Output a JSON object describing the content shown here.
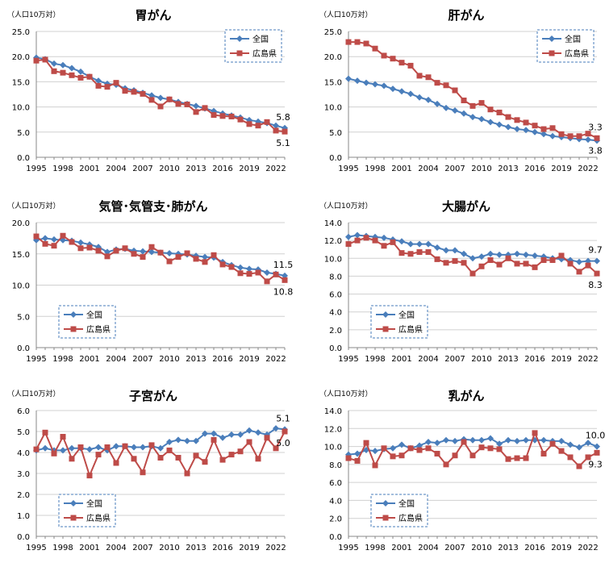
{
  "colors": {
    "national": "#4a7ebb",
    "hiroshima": "#be4b48",
    "grid": "#d0d0d0",
    "legend_border": "#4a7ebb"
  },
  "chart_data": [
    {
      "type": "line",
      "title": "胃がん",
      "unit_label": "（人口10万対）",
      "ylim": [
        0,
        25
      ],
      "yticks": [
        "0.0",
        "5.0",
        "10.0",
        "15.0",
        "20.0",
        "25.0"
      ],
      "xlim": [
        1995,
        2023
      ],
      "xticks": [
        "1995",
        "1998",
        "2001",
        "2004",
        "2007",
        "2010",
        "2013",
        "2016",
        "2019",
        "2022"
      ],
      "legend_position": "top-right",
      "end_labels": [
        "5.8",
        "5.1"
      ],
      "x": [
        1995,
        1996,
        1997,
        1998,
        1999,
        2000,
        2001,
        2002,
        2003,
        2004,
        2005,
        2006,
        2007,
        2008,
        2009,
        2010,
        2011,
        2012,
        2013,
        2014,
        2015,
        2016,
        2017,
        2018,
        2019,
        2020,
        2021,
        2022,
        2023
      ],
      "series": [
        {
          "name": "全国",
          "marker": "diamond",
          "values": [
            19.8,
            19.5,
            18.6,
            18.3,
            17.7,
            17.0,
            16.0,
            15.2,
            14.6,
            14.4,
            13.7,
            13.3,
            12.8,
            12.3,
            11.8,
            11.5,
            11.0,
            10.6,
            10.2,
            9.7,
            9.2,
            8.7,
            8.3,
            7.9,
            7.4,
            7.1,
            6.8,
            6.3,
            5.8
          ]
        },
        {
          "name": "広島県",
          "marker": "square",
          "values": [
            19.2,
            19.4,
            17.1,
            16.8,
            16.3,
            15.8,
            16.0,
            14.2,
            14.0,
            14.8,
            13.2,
            13.0,
            12.6,
            11.4,
            10.1,
            11.5,
            10.6,
            10.5,
            9.0,
            9.8,
            8.4,
            8.2,
            8.1,
            7.5,
            6.6,
            6.3,
            7.0,
            5.3,
            5.1
          ]
        }
      ]
    },
    {
      "type": "line",
      "title": "肝がん",
      "unit_label": "（人口10万対）",
      "ylim": [
        0,
        25
      ],
      "yticks": [
        "0.0",
        "5.0",
        "10.0",
        "15.0",
        "20.0",
        "25.0"
      ],
      "xlim": [
        1995,
        2023
      ],
      "xticks": [
        "1995",
        "1998",
        "2001",
        "2004",
        "2007",
        "2010",
        "2013",
        "2016",
        "2019",
        "2022"
      ],
      "legend_position": "top-right",
      "end_labels": [
        "3.8",
        "3.3"
      ],
      "x": [
        1995,
        1996,
        1997,
        1998,
        1999,
        2000,
        2001,
        2002,
        2003,
        2004,
        2005,
        2006,
        2007,
        2008,
        2009,
        2010,
        2011,
        2012,
        2013,
        2014,
        2015,
        2016,
        2017,
        2018,
        2019,
        2020,
        2021,
        2022,
        2023
      ],
      "series": [
        {
          "name": "全国",
          "marker": "diamond",
          "values": [
            15.6,
            15.2,
            14.8,
            14.5,
            14.2,
            13.6,
            13.1,
            12.6,
            11.9,
            11.4,
            10.6,
            9.8,
            9.3,
            8.7,
            8.0,
            7.6,
            7.0,
            6.5,
            6.0,
            5.6,
            5.4,
            5.0,
            4.6,
            4.2,
            4.0,
            3.8,
            3.6,
            3.5,
            3.3
          ]
        },
        {
          "name": "広島県",
          "marker": "square",
          "values": [
            22.9,
            22.9,
            22.6,
            21.6,
            20.2,
            19.6,
            18.8,
            18.2,
            16.2,
            15.9,
            14.8,
            14.3,
            13.3,
            11.3,
            10.2,
            10.8,
            9.5,
            8.9,
            8.0,
            7.4,
            6.9,
            6.3,
            5.6,
            5.8,
            4.6,
            4.2,
            4.2,
            4.7,
            3.8
          ]
        }
      ]
    },
    {
      "type": "line",
      "title": "気管･気管支･肺がん",
      "unit_label": "（人口10万対）",
      "ylim": [
        0,
        20
      ],
      "yticks": [
        "0.0",
        "5.0",
        "10.0",
        "15.0",
        "20.0"
      ],
      "xlim": [
        1995,
        2023
      ],
      "xticks": [
        "1995",
        "1998",
        "2001",
        "2004",
        "2007",
        "2010",
        "2013",
        "2016",
        "2019",
        "2022"
      ],
      "legend_position": "bottom-left",
      "end_labels": [
        "11.5",
        "10.8"
      ],
      "x": [
        1995,
        1996,
        1997,
        1998,
        1999,
        2000,
        2001,
        2002,
        2003,
        2004,
        2005,
        2006,
        2007,
        2008,
        2009,
        2010,
        2011,
        2012,
        2013,
        2014,
        2015,
        2016,
        2017,
        2018,
        2019,
        2020,
        2021,
        2022,
        2023
      ],
      "series": [
        {
          "name": "全国",
          "marker": "diamond",
          "values": [
            17.2,
            17.5,
            17.3,
            17.2,
            17.1,
            16.8,
            16.5,
            16.1,
            15.3,
            15.7,
            15.8,
            15.5,
            15.4,
            15.3,
            15.2,
            15.1,
            15.0,
            14.9,
            14.7,
            14.5,
            14.4,
            13.7,
            13.2,
            12.8,
            12.6,
            12.5,
            12.0,
            11.8,
            11.5
          ]
        },
        {
          "name": "広島県",
          "marker": "square",
          "values": [
            17.8,
            16.6,
            16.3,
            17.9,
            16.9,
            15.9,
            16.0,
            15.5,
            14.6,
            15.5,
            15.9,
            15.0,
            14.5,
            16.1,
            15.2,
            13.8,
            14.5,
            15.1,
            14.2,
            13.7,
            14.8,
            13.3,
            12.9,
            11.9,
            11.8,
            12.0,
            10.6,
            11.7,
            10.8
          ]
        }
      ]
    },
    {
      "type": "line",
      "title": "大腸がん",
      "unit_label": "（人口10万対）",
      "ylim": [
        0,
        14
      ],
      "yticks": [
        "0.0",
        "2.0",
        "4.0",
        "6.0",
        "8.0",
        "10.0",
        "12.0",
        "14.0"
      ],
      "xlim": [
        1995,
        2023
      ],
      "xticks": [
        "1995",
        "1998",
        "2001",
        "2004",
        "2007",
        "2010",
        "2013",
        "2016",
        "2019",
        "2022"
      ],
      "legend_position": "bottom-left",
      "end_labels": [
        "9.7",
        "8.3"
      ],
      "x": [
        1995,
        1996,
        1997,
        1998,
        1999,
        2000,
        2001,
        2002,
        2003,
        2004,
        2005,
        2006,
        2007,
        2008,
        2009,
        2010,
        2011,
        2012,
        2013,
        2014,
        2015,
        2016,
        2017,
        2018,
        2019,
        2020,
        2021,
        2022,
        2023
      ],
      "series": [
        {
          "name": "全国",
          "marker": "diamond",
          "values": [
            12.4,
            12.6,
            12.5,
            12.4,
            12.3,
            12.1,
            11.9,
            11.6,
            11.6,
            11.6,
            11.2,
            10.9,
            10.9,
            10.5,
            10.0,
            10.2,
            10.5,
            10.4,
            10.4,
            10.5,
            10.4,
            10.3,
            10.2,
            10.0,
            9.9,
            9.8,
            9.6,
            9.7,
            9.7
          ]
        },
        {
          "name": "広島県",
          "marker": "square",
          "values": [
            11.6,
            12.0,
            12.3,
            12.0,
            11.4,
            11.8,
            10.6,
            10.5,
            10.7,
            10.7,
            9.9,
            9.5,
            9.7,
            9.5,
            8.3,
            9.1,
            9.8,
            9.3,
            10.0,
            9.4,
            9.4,
            9.0,
            9.8,
            9.8,
            10.3,
            9.4,
            8.5,
            9.2,
            8.3
          ]
        }
      ]
    },
    {
      "type": "line",
      "title": "子宮がん",
      "unit_label": "（人口10万対）",
      "ylim": [
        0,
        6
      ],
      "yticks": [
        "0.0",
        "1.0",
        "2.0",
        "3.0",
        "4.0",
        "5.0",
        "6.0"
      ],
      "xlim": [
        1995,
        2023
      ],
      "xticks": [
        "1995",
        "1998",
        "2001",
        "2004",
        "2007",
        "2010",
        "2013",
        "2016",
        "2019",
        "2022"
      ],
      "legend_position": "bottom-left",
      "end_labels": [
        "5.1",
        "5.0"
      ],
      "x": [
        1995,
        1996,
        1997,
        1998,
        1999,
        2000,
        2001,
        2002,
        2003,
        2004,
        2005,
        2006,
        2007,
        2008,
        2009,
        2010,
        2011,
        2012,
        2013,
        2014,
        2015,
        2016,
        2017,
        2018,
        2019,
        2020,
        2021,
        2022,
        2023
      ],
      "series": [
        {
          "name": "全国",
          "marker": "diamond",
          "values": [
            4.1,
            4.2,
            4.1,
            4.1,
            4.2,
            4.2,
            4.15,
            4.25,
            4.1,
            4.3,
            4.3,
            4.25,
            4.25,
            4.3,
            4.2,
            4.5,
            4.6,
            4.55,
            4.55,
            4.9,
            4.9,
            4.7,
            4.85,
            4.85,
            5.05,
            4.95,
            4.85,
            5.15,
            5.1
          ]
        },
        {
          "name": "広島県",
          "marker": "square",
          "values": [
            4.15,
            4.95,
            3.95,
            4.75,
            3.7,
            4.25,
            2.9,
            3.9,
            4.25,
            3.5,
            4.3,
            3.7,
            3.05,
            4.35,
            3.75,
            4.1,
            3.75,
            3.0,
            3.85,
            3.55,
            4.6,
            3.65,
            3.9,
            4.05,
            4.5,
            3.7,
            4.7,
            4.2,
            5.0
          ]
        }
      ]
    },
    {
      "type": "line",
      "title": "乳がん",
      "unit_label": "（人口10万対）",
      "ylim": [
        0,
        14
      ],
      "yticks": [
        "0.0",
        "2.0",
        "4.0",
        "6.0",
        "8.0",
        "10.0",
        "12.0",
        "14.0"
      ],
      "xlim": [
        1995,
        2023
      ],
      "xticks": [
        "1995",
        "1998",
        "2001",
        "2004",
        "2007",
        "2010",
        "2013",
        "2016",
        "2019",
        "2022"
      ],
      "legend_position": "bottom-left",
      "end_labels": [
        "10.0",
        "9.3"
      ],
      "x": [
        1995,
        1996,
        1997,
        1998,
        1999,
        2000,
        2001,
        2002,
        2003,
        2004,
        2005,
        2006,
        2007,
        2008,
        2009,
        2010,
        2011,
        2012,
        2013,
        2014,
        2015,
        2016,
        2017,
        2018,
        2019,
        2020,
        2021,
        2022,
        2023
      ],
      "series": [
        {
          "name": "全国",
          "marker": "diamond",
          "values": [
            9.1,
            9.2,
            9.6,
            9.5,
            9.7,
            9.8,
            10.2,
            9.8,
            10.1,
            10.5,
            10.4,
            10.7,
            10.6,
            10.8,
            10.7,
            10.7,
            10.9,
            10.3,
            10.7,
            10.6,
            10.7,
            10.7,
            10.7,
            10.6,
            10.6,
            10.2,
            9.9,
            10.4,
            10.0
          ]
        },
        {
          "name": "広島県",
          "marker": "square",
          "values": [
            8.7,
            8.4,
            10.4,
            7.9,
            9.8,
            8.9,
            9.0,
            9.8,
            9.6,
            9.8,
            9.2,
            8.0,
            9.0,
            10.5,
            9.0,
            9.9,
            9.8,
            9.7,
            8.6,
            8.7,
            8.7,
            11.5,
            9.2,
            10.3,
            9.5,
            8.8,
            7.8,
            8.8,
            9.3
          ]
        }
      ]
    }
  ]
}
